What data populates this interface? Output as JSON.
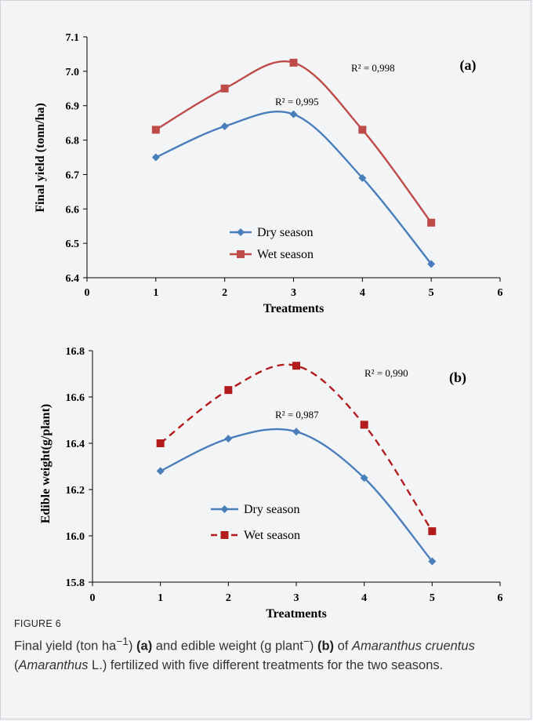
{
  "chart_data": [
    {
      "type": "line",
      "panel_label": "(a)",
      "xlabel": "Treatments",
      "ylabel": "Final yield (tonn/ha)",
      "xlim": [
        0,
        6
      ],
      "ylim": [
        6.4,
        7.1
      ],
      "x_ticks": [
        "0",
        "1",
        "2",
        "3",
        "4",
        "5",
        "6"
      ],
      "y_ticks": [
        "6.4",
        "6.5",
        "6.6",
        "6.7",
        "6.8",
        "6.9",
        "7.0",
        "7.1"
      ],
      "x": [
        1,
        2,
        3,
        4,
        5
      ],
      "legend_position": "bottom-center",
      "series": [
        {
          "name": "Dry season",
          "values": [
            6.75,
            6.84,
            6.875,
            6.69,
            6.44
          ],
          "color": "#4a7ebb",
          "marker": "diamond",
          "dash": "solid",
          "r2": "R² = 0,995"
        },
        {
          "name": "Wet season",
          "values": [
            6.83,
            6.95,
            7.025,
            6.83,
            6.56
          ],
          "color": "#be4b48",
          "marker": "square",
          "dash": "solid",
          "r2": "R² = 0,998"
        }
      ]
    },
    {
      "type": "line",
      "panel_label": "(b)",
      "xlabel": "Treatments",
      "ylabel": "Edible weight(g/plant)",
      "xlim": [
        0,
        6
      ],
      "ylim": [
        15.8,
        16.8
      ],
      "x_ticks": [
        "0",
        "1",
        "2",
        "3",
        "4",
        "5",
        "6"
      ],
      "y_ticks": [
        "15.8",
        "16.0",
        "16.2",
        "16.4",
        "16.6",
        "16.8"
      ],
      "x": [
        1,
        2,
        3,
        4,
        5
      ],
      "legend_position": "bottom-center",
      "series": [
        {
          "name": "Dry season",
          "values": [
            16.28,
            16.42,
            16.45,
            16.25,
            15.89
          ],
          "color": "#4a7ebb",
          "marker": "diamond",
          "dash": "solid",
          "r2": "R² = 0,987"
        },
        {
          "name": "Wet season",
          "values": [
            16.4,
            16.63,
            16.735,
            16.48,
            16.02
          ],
          "color": "#b31c1c",
          "marker": "square",
          "dash": "dashed",
          "r2": "R² = 0,990"
        }
      ]
    }
  ],
  "caption": {
    "label": "FIGURE 6",
    "text_1": "Final yield (ton ha",
    "sup_1": "−1",
    "text_2": ") ",
    "bold_a": "(a)",
    "text_3": " and edible weight (g plant",
    "sup_2": "−",
    "text_4": ") ",
    "bold_b": "(b)",
    "text_5": " of ",
    "italic_1": "Amaranthus cruentus",
    "text_6": " (",
    "italic_2": "Amaranthus",
    "text_7": " L.) fertilized with five different treatments for the two seasons."
  }
}
